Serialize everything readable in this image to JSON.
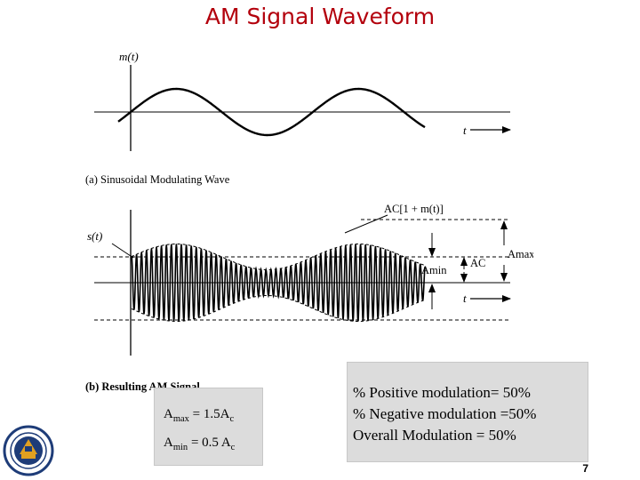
{
  "slide": {
    "title": "AM Signal Waveform",
    "page_number": "7"
  },
  "figure": {
    "panel_a": {
      "ylabel": "m(t)",
      "xlabel": "t",
      "caption": "(a) Sinusoidal Modulating Wave"
    },
    "panel_b": {
      "ylabel": "s(t)",
      "xlabel": "t",
      "envelope_label": "AC[1 + m(t)]",
      "amin_label": "Amin",
      "ac_label": "AC",
      "amax_label": "Amax",
      "caption": "(b) Resulting AM Signal"
    }
  },
  "amplitude_box": {
    "amax_line": "Amax = 1.5Ac",
    "amin_line": "Amin = 0.5 Ac"
  },
  "modulation_box": {
    "line1": "% Positive modulation= 50%",
    "line2": "% Negative modulation =50%",
    "line3": "Overall Modulation = 50%"
  },
  "logo": {
    "icon": "university-seal-icon",
    "color": "#1e3c78"
  },
  "colors": {
    "title": "#b3000c",
    "box_background": "#dcdcdc"
  }
}
